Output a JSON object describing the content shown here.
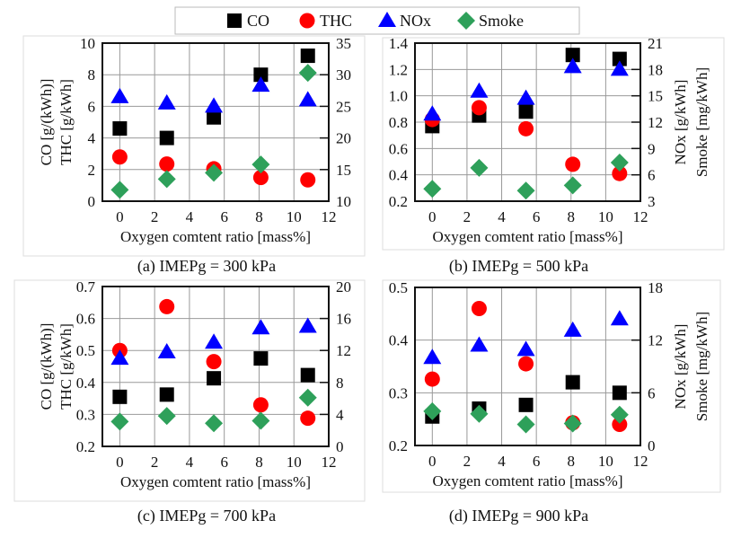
{
  "legend": {
    "entries": [
      {
        "name": "CO",
        "marker": "square",
        "color": "#000000"
      },
      {
        "name": "THC",
        "marker": "circle",
        "color": "#ff0000"
      },
      {
        "name": "NOx",
        "marker": "triangle",
        "color": "#0000ff"
      },
      {
        "name": "Smoke",
        "marker": "diamond",
        "color": "#2ea05a"
      }
    ]
  },
  "chart_data": [
    {
      "type": "scatter",
      "caption": "(a) IMEPg = 300 kPa",
      "xlabel": "Oxygen comtent ratio [mass%]",
      "ylabel_left": [
        "CO [g/(kWh)]",
        "THC [g/kWh]"
      ],
      "ylabel_right": [],
      "xlim": [
        -1,
        12
      ],
      "xticks": [
        0,
        2,
        4,
        6,
        8,
        10,
        12
      ],
      "ylim_left": [
        0,
        10
      ],
      "yticks_left": [
        0,
        2,
        4,
        6,
        8,
        10
      ],
      "ylim_right": [
        10,
        35
      ],
      "yticks_right": [
        10,
        15,
        20,
        25,
        30,
        35
      ],
      "grid": true,
      "x": [
        0,
        2.7,
        5.4,
        8.1,
        10.8
      ],
      "series": [
        {
          "name": "CO",
          "axis": "left",
          "values": [
            4.6,
            4.0,
            5.3,
            8.0,
            9.2
          ]
        },
        {
          "name": "THC",
          "axis": "left",
          "values": [
            2.8,
            2.35,
            2.05,
            1.5,
            1.35
          ]
        },
        {
          "name": "NOx",
          "axis": "right",
          "values": [
            26.5,
            25.5,
            25.0,
            28.3,
            26.0
          ]
        },
        {
          "name": "Smoke",
          "axis": "right",
          "values": [
            11.8,
            13.5,
            14.5,
            15.8,
            30.3
          ]
        }
      ]
    },
    {
      "type": "scatter",
      "caption": "(b) IMEPg = 500 kPa",
      "xlabel": "Oxygen comtent ratio [mass%]",
      "ylabel_left": [],
      "ylabel_right": [
        "NOx [g/kWh]",
        "Smoke [mg/kWh]"
      ],
      "xlim": [
        -1,
        12
      ],
      "xticks": [
        0,
        2,
        4,
        6,
        8,
        10,
        12
      ],
      "ylim_left": [
        0.2,
        1.4
      ],
      "yticks_left": [
        "0.2",
        "0.4",
        "0.6",
        "0.8",
        "1.0",
        "1.2",
        "1.4"
      ],
      "ylim_right": [
        3,
        21
      ],
      "yticks_right": [
        3,
        6,
        9,
        12,
        15,
        18,
        21
      ],
      "grid": true,
      "x": [
        0,
        2.7,
        5.4,
        8.1,
        10.8
      ],
      "series": [
        {
          "name": "CO",
          "axis": "left",
          "values": [
            0.77,
            0.85,
            0.88,
            1.31,
            1.28
          ]
        },
        {
          "name": "THC",
          "axis": "left",
          "values": [
            0.82,
            0.91,
            0.75,
            0.48,
            0.41
          ]
        },
        {
          "name": "NOx",
          "axis": "right",
          "values": [
            12.9,
            15.5,
            14.7,
            18.3,
            18.0
          ]
        },
        {
          "name": "Smoke",
          "axis": "right",
          "values": [
            4.4,
            6.8,
            4.2,
            4.8,
            7.4
          ]
        }
      ]
    },
    {
      "type": "scatter",
      "caption": "(c) IMEPg = 700 kPa",
      "xlabel": "Oxygen comtent ratio [mass%]",
      "ylabel_left": [
        "CO [g/(kWh)]",
        "THC [g/kWh]"
      ],
      "ylabel_right": [],
      "xlim": [
        -1,
        12
      ],
      "xticks": [
        0,
        2,
        4,
        6,
        8,
        10,
        12
      ],
      "ylim_left": [
        0.2,
        0.7
      ],
      "yticks_left": [
        "0.2",
        "0.3",
        "0.4",
        "0.5",
        "0.6",
        "0.7"
      ],
      "ylim_right": [
        0,
        20
      ],
      "yticks_right": [
        0,
        4,
        8,
        12,
        16,
        20
      ],
      "grid": true,
      "x": [
        0,
        2.7,
        5.4,
        8.1,
        10.8
      ],
      "series": [
        {
          "name": "CO",
          "axis": "left",
          "values": [
            0.355,
            0.362,
            0.413,
            0.475,
            0.423
          ]
        },
        {
          "name": "THC",
          "axis": "left",
          "values": [
            0.5,
            0.637,
            0.465,
            0.33,
            0.288
          ]
        },
        {
          "name": "NOx",
          "axis": "right",
          "values": [
            11.0,
            11.8,
            13.0,
            14.8,
            15.0
          ]
        },
        {
          "name": "Smoke",
          "axis": "right",
          "values": [
            3.1,
            3.8,
            2.9,
            3.2,
            6.1
          ]
        }
      ]
    },
    {
      "type": "scatter",
      "caption": "(d) IMEPg = 900 kPa",
      "xlabel": "Oxygen comtent ratio [mass%]",
      "ylabel_left": [],
      "ylabel_right": [
        "NOx [g/kWh]",
        "Smoke [mg/kWh]"
      ],
      "xlim": [
        -1,
        12
      ],
      "xticks": [
        0,
        2,
        4,
        6,
        8,
        10,
        12
      ],
      "ylim_left": [
        0.2,
        0.5
      ],
      "yticks_left": [
        "0.2",
        "0.3",
        "0.4",
        "0.5"
      ],
      "ylim_right": [
        0,
        18
      ],
      "yticks_right": [
        0,
        6,
        12,
        18
      ],
      "grid": true,
      "x": [
        0,
        2.7,
        5.4,
        8.1,
        10.8
      ],
      "series": [
        {
          "name": "CO",
          "axis": "left",
          "values": [
            0.255,
            0.27,
            0.277,
            0.32,
            0.3
          ]
        },
        {
          "name": "THC",
          "axis": "left",
          "values": [
            0.326,
            0.46,
            0.355,
            0.243,
            0.24
          ]
        },
        {
          "name": "NOx",
          "axis": "right",
          "values": [
            10.0,
            11.4,
            10.9,
            13.1,
            14.4
          ]
        },
        {
          "name": "Smoke",
          "axis": "right",
          "values": [
            3.9,
            3.6,
            2.4,
            2.5,
            3.5
          ]
        }
      ]
    }
  ]
}
